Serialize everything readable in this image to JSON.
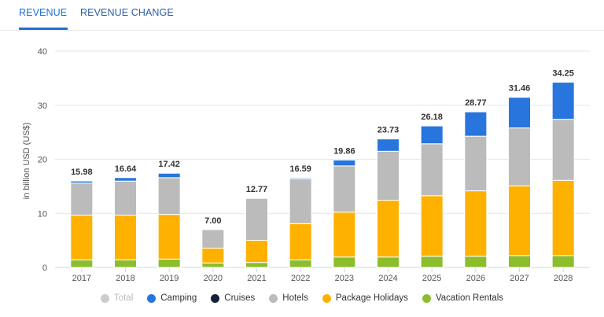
{
  "tabs": [
    {
      "label": "REVENUE",
      "active": true
    },
    {
      "label": "REVENUE CHANGE",
      "active": false
    }
  ],
  "chart_data": {
    "type": "bar",
    "stacked": true,
    "title": "",
    "xlabel": "",
    "ylabel": "in billion USD (US$)",
    "ylim": [
      0,
      40
    ],
    "yticks": [
      "0",
      "10",
      "20",
      "30",
      "40"
    ],
    "grid": true,
    "legend_position": "bottom",
    "categories": [
      "2017",
      "2018",
      "2019",
      "2020",
      "2021",
      "2022",
      "2023",
      "2024",
      "2025",
      "2026",
      "2027",
      "2028"
    ],
    "totals": [
      "15.98",
      "16.64",
      "17.42",
      "7.00",
      "12.77",
      "16.59",
      "19.86",
      "23.73",
      "26.18",
      "28.77",
      "31.46",
      "34.25"
    ],
    "series": [
      {
        "name": "Vacation Rentals",
        "color": "#8cbd2c",
        "values": [
          1.4,
          1.4,
          1.55,
          0.83,
          0.92,
          1.4,
          1.93,
          1.93,
          2.07,
          2.07,
          2.2,
          2.2
        ]
      },
      {
        "name": "Package Holidays",
        "color": "#ffb100",
        "values": [
          8.27,
          8.27,
          8.25,
          2.75,
          4.1,
          6.7,
          8.3,
          10.5,
          11.2,
          12.1,
          12.9,
          13.9
        ]
      },
      {
        "name": "Hotels",
        "color": "#bbbbbb",
        "values": [
          5.93,
          6.3,
          6.8,
          3.42,
          7.75,
          8.3,
          8.55,
          9.05,
          9.6,
          10.1,
          10.7,
          11.3
        ]
      },
      {
        "name": "Cruises",
        "color": "#14213d",
        "values": [
          0,
          0,
          0,
          0,
          0,
          0,
          0,
          0,
          0,
          0,
          0,
          0
        ]
      },
      {
        "name": "Camping",
        "color": "#2876dd",
        "values": [
          0.38,
          0.64,
          0.82,
          0,
          0,
          0.19,
          1.08,
          2.28,
          3.3,
          4.5,
          5.66,
          6.85
        ]
      }
    ],
    "legend": [
      {
        "name": "Total",
        "color": "#cccccc",
        "enabled": false
      },
      {
        "name": "Camping",
        "color": "#2876dd",
        "enabled": true
      },
      {
        "name": "Cruises",
        "color": "#14213d",
        "enabled": true
      },
      {
        "name": "Hotels",
        "color": "#bbbbbb",
        "enabled": true
      },
      {
        "name": "Package Holidays",
        "color": "#ffb100",
        "enabled": true
      },
      {
        "name": "Vacation Rentals",
        "color": "#8cbd2c",
        "enabled": true
      }
    ]
  }
}
